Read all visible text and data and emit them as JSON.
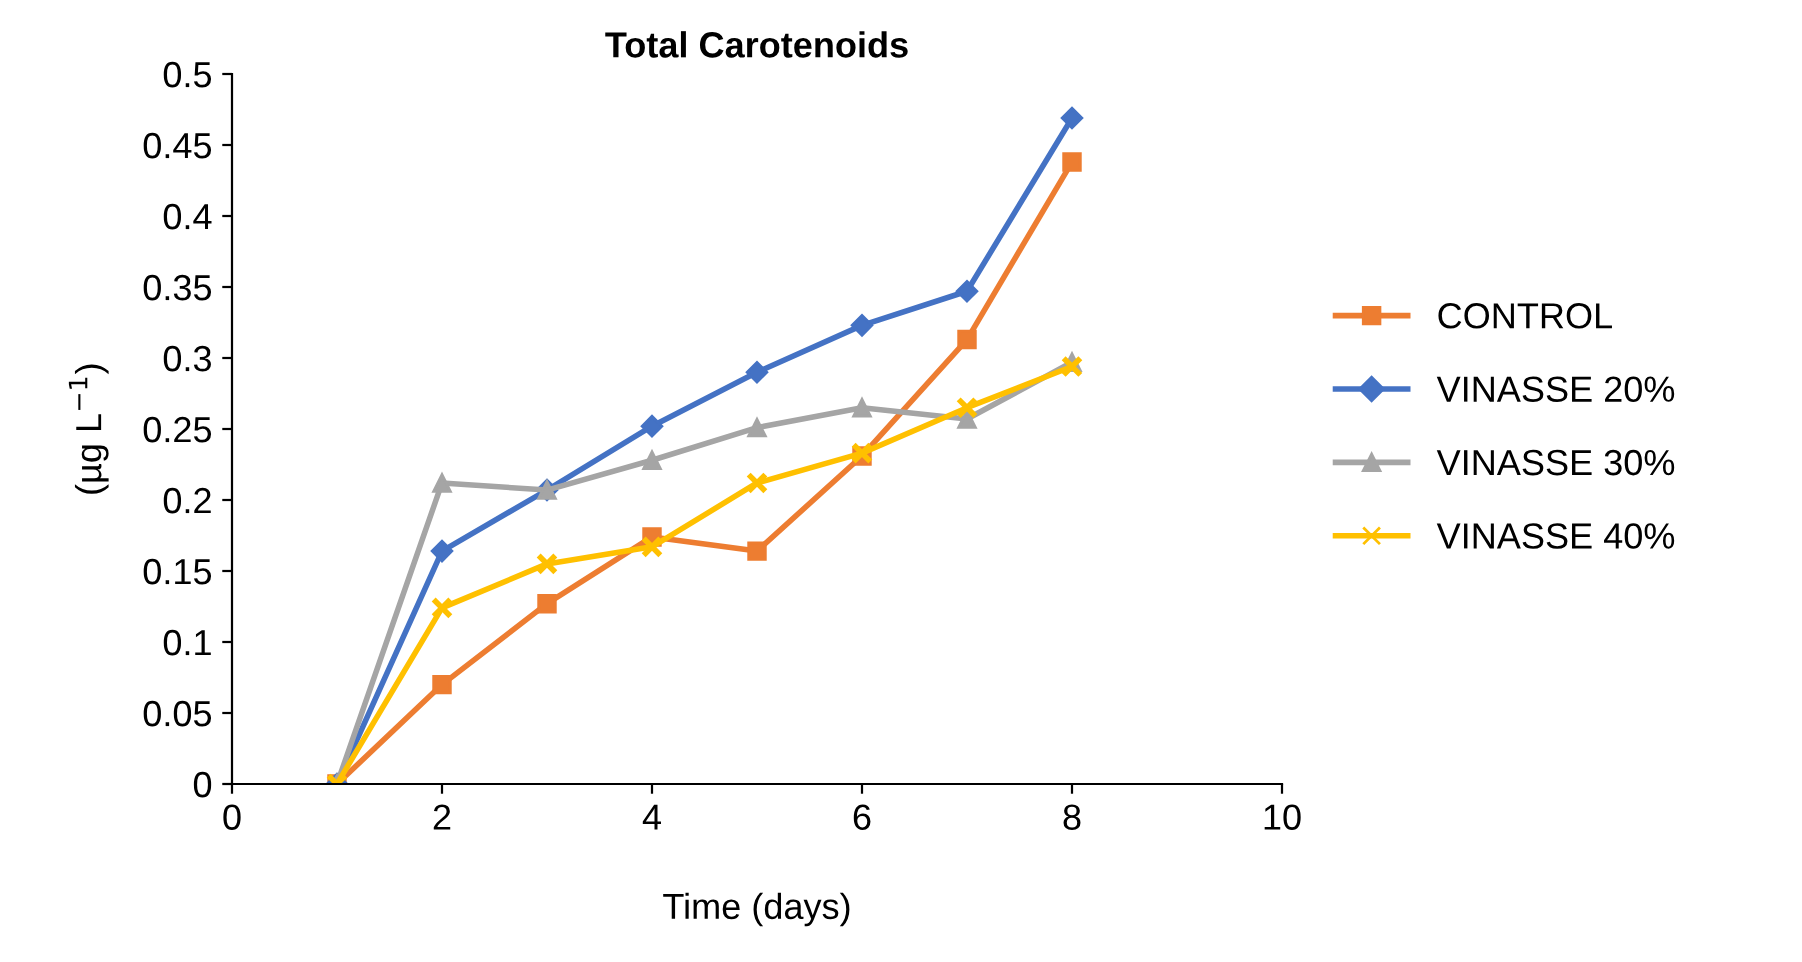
{
  "chart_data": {
    "type": "line",
    "title": "Total Carotenoids",
    "xlabel": "Time (days)",
    "ylabel": "(µg L$^{−1}$)",
    "x": [
      1,
      2,
      3,
      4,
      5,
      6,
      7,
      8
    ],
    "series": [
      {
        "name": "CONTROL",
        "color": "#ed7d31",
        "marker": "square",
        "values": [
          0,
          0.07,
          0.127,
          0.174,
          0.164,
          0.231,
          0.313,
          0.438
        ]
      },
      {
        "name": "VINASSE 20%",
        "color": "#4472c4",
        "marker": "diamond",
        "values": [
          0,
          0.164,
          0.207,
          0.252,
          0.29,
          0.323,
          0.347,
          0.469
        ]
      },
      {
        "name": "VINASSE 30%",
        "color": "#a5a5a5",
        "marker": "triangle",
        "values": [
          0,
          0.212,
          0.207,
          0.228,
          0.251,
          0.265,
          0.257,
          0.297
        ]
      },
      {
        "name": "VINASSE 40%",
        "color": "#ffc000",
        "marker": "cross",
        "values": [
          0,
          0.124,
          0.155,
          0.167,
          0.212,
          0.233,
          0.265,
          0.294
        ]
      }
    ],
    "xlim": [
      0,
      10
    ],
    "xticks": [
      0,
      2,
      4,
      6,
      8,
      10
    ],
    "ylim": [
      0,
      0.5
    ],
    "yticks": [
      0,
      0.05,
      0.1,
      0.15,
      0.2,
      0.25,
      0.3,
      0.35,
      0.4,
      0.45,
      0.5
    ],
    "grid": false,
    "legend": "right",
    "line_style": "solid"
  }
}
